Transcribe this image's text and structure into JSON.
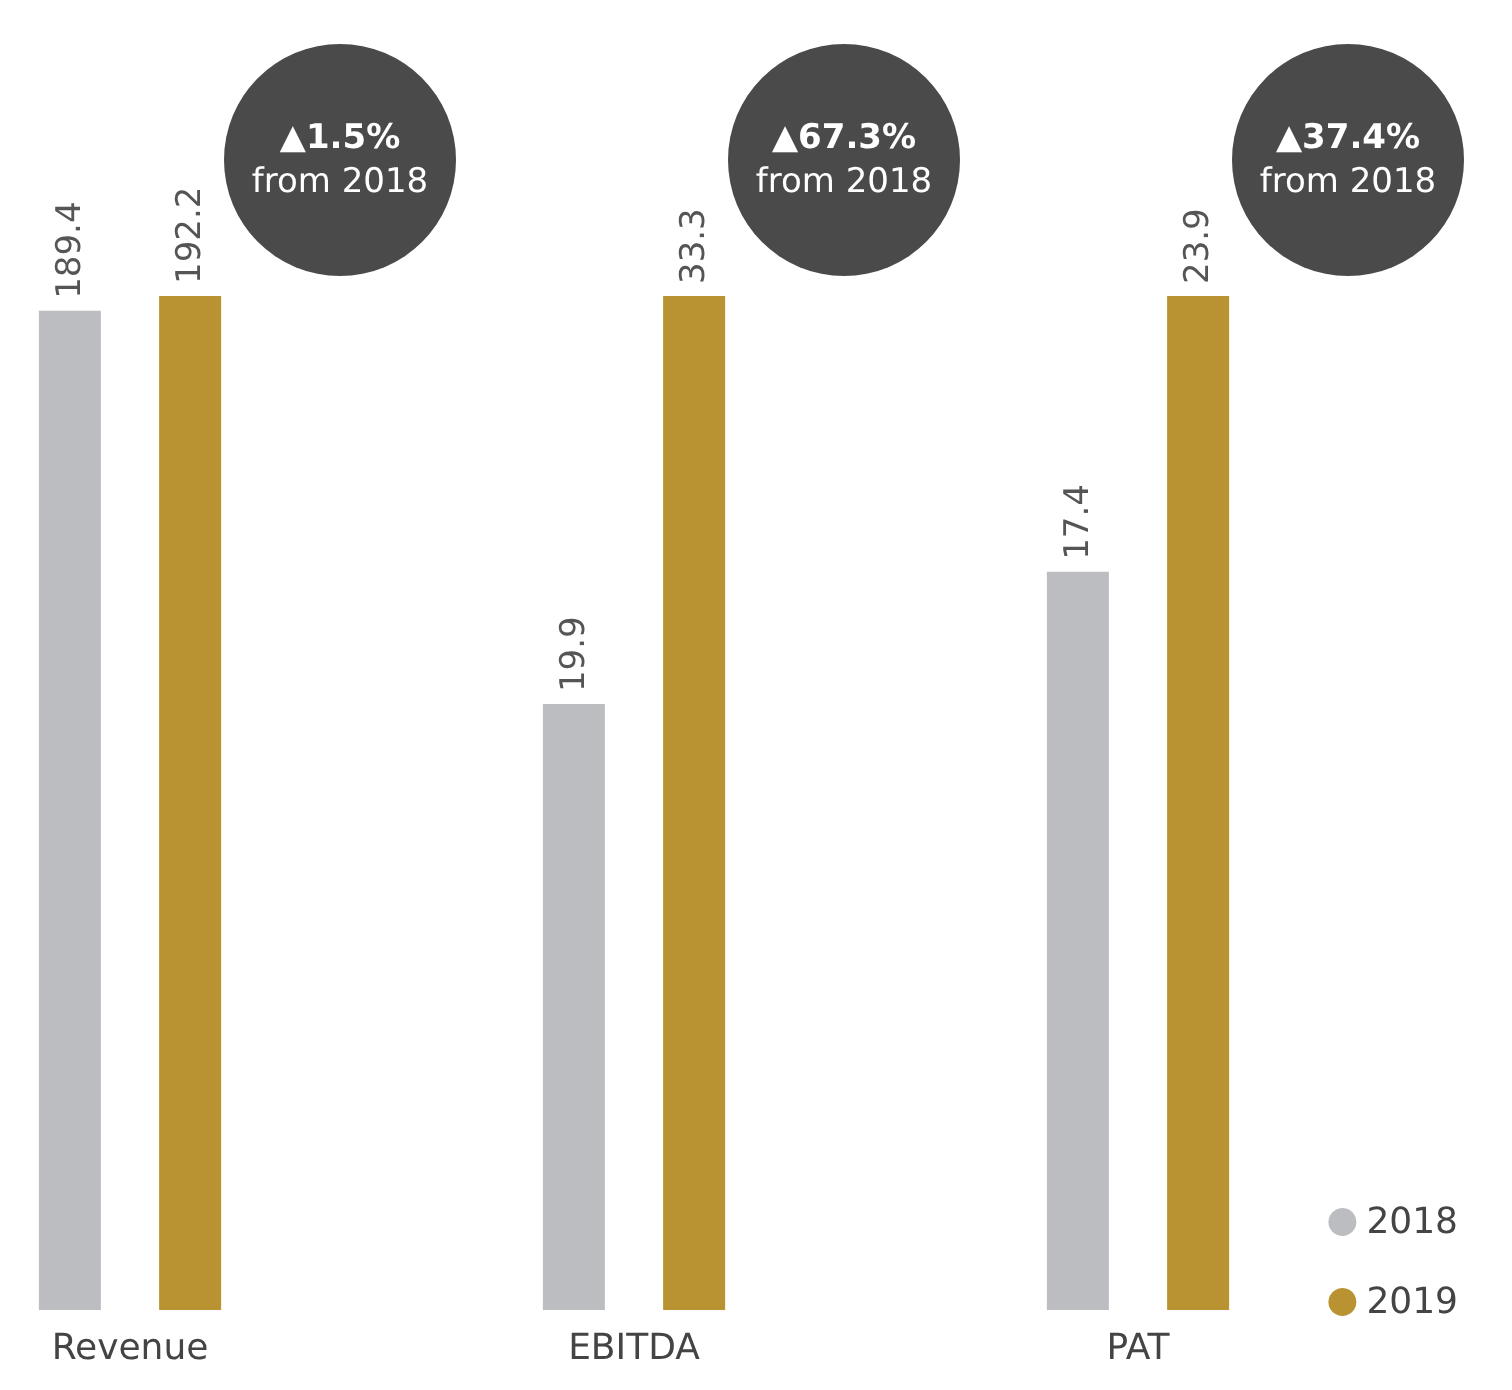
{
  "chart_data": [
    {
      "type": "bar",
      "categories": [
        "Revenue"
      ],
      "series": [
        {
          "color": "#bcbdc0",
          "values": [
            189.4
          ]
        },
        {
          "color": "#b99332",
          "values": [
            192.2
          ]
        }
      ],
      "data_labels": true,
      "legend": false,
      "annotations": [
        "▲1.5%\nfrom 2018"
      ]
    },
    {
      "type": "bar",
      "categories": [
        "EBITDA"
      ],
      "series": [
        {
          "color": "#bcbdc0",
          "values": [
            19.9
          ]
        },
        {
          "color": "#b99332",
          "values": [
            33.3
          ]
        }
      ],
      "data_labels": true,
      "legend": false,
      "annotations": [
        "▲67.3%\nfrom 2018"
      ]
    },
    {
      "type": "bar",
      "categories": [
        "PAT"
      ],
      "series": [
        {
          "name": "2018",
          "color": "#bcbdc0",
          "values": [
            17.4
          ]
        },
        {
          "name": "2019",
          "color": "#b99332",
          "values": [
            23.9
          ]
        }
      ],
      "data_labels": true,
      "legend": "bottom right",
      "annotations": [
        "▲37.4%\nfrom 2018"
      ]
    }
  ]
}
